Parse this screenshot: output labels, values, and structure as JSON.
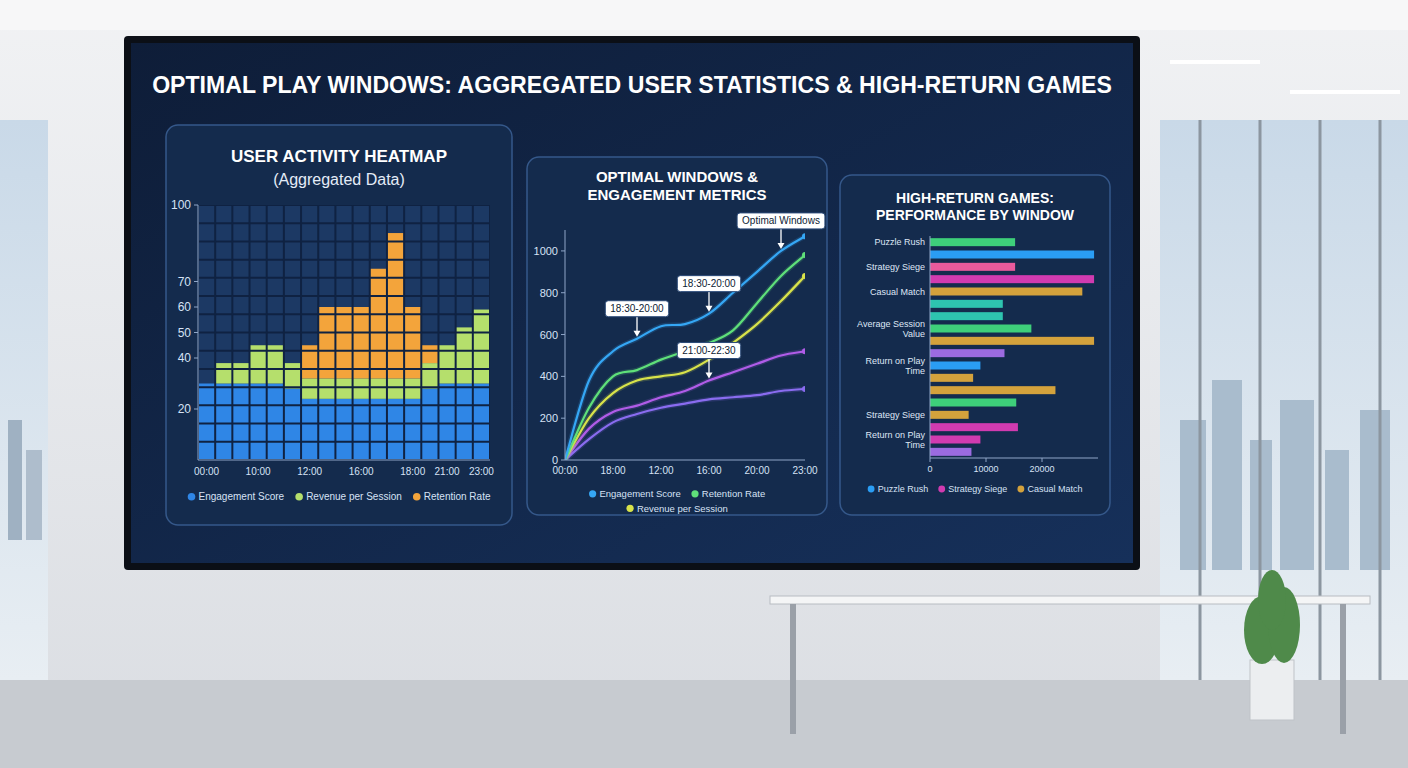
{
  "dashboard": {
    "title": "OPTIMAL PLAY WINDOWS: AGGREGATED USER STATISTICS & HIGH-RETURN GAMES"
  },
  "chart_data": [
    {
      "type": "bar",
      "stacked": true,
      "title": "USER ACTIVITY HEATMAP",
      "subtitle": "(Aggregated Data)",
      "categories": [
        "00:00",
        null,
        null,
        "10:00",
        null,
        null,
        "12:00",
        null,
        null,
        "16:00",
        null,
        null,
        "18:00",
        null,
        "21:00",
        null,
        "23:00"
      ],
      "series": [
        {
          "name": "Engagement Score",
          "color": "#2f86e6",
          "values": [
            30,
            30,
            30,
            30,
            30,
            28,
            24,
            24,
            24,
            24,
            24,
            24,
            24,
            28,
            30,
            30,
            30
          ]
        },
        {
          "name": "Revenue per Session",
          "color": "#b5df6c",
          "values": [
            0,
            8,
            8,
            15,
            15,
            10,
            8,
            8,
            8,
            8,
            8,
            8,
            8,
            10,
            15,
            22,
            29
          ]
        },
        {
          "name": "Retention Rate",
          "color": "#f3a43b",
          "values": [
            0,
            0,
            0,
            0,
            0,
            0,
            13,
            28,
            28,
            28,
            43,
            57,
            28,
            7,
            0,
            0,
            0
          ]
        }
      ],
      "ylim": [
        0,
        100
      ],
      "yticks": [
        20,
        40,
        50,
        60,
        70,
        100
      ],
      "legend": "bottom"
    },
    {
      "type": "line",
      "title": "OPTIMAL WINDOWS & ENGAGEMENT METRICS",
      "categories": [
        "00:00",
        null,
        "18:00",
        null,
        "12:00",
        null,
        "16:00",
        null,
        "20:00",
        null,
        "23:00"
      ],
      "series": [
        {
          "name": "Engagement Score",
          "color": "#35a7f5",
          "values": [
            0,
            380,
            520,
            580,
            640,
            650,
            700,
            800,
            900,
            1000,
            1070
          ]
        },
        {
          "name": "Retention Rate",
          "color": "#5fe07a",
          "values": [
            0,
            250,
            400,
            430,
            480,
            520,
            560,
            620,
            750,
            880,
            980
          ]
        },
        {
          "name": "Revenue per Session",
          "color": "#d8e34a",
          "values": [
            0,
            200,
            320,
            380,
            400,
            420,
            480,
            560,
            650,
            760,
            880
          ]
        },
        {
          "color": "#b05ce8",
          "values": [
            0,
            150,
            230,
            260,
            300,
            330,
            380,
            420,
            460,
            500,
            520
          ]
        },
        {
          "color": "#8a6cf0",
          "values": [
            0,
            100,
            180,
            220,
            250,
            270,
            290,
            300,
            310,
            330,
            340
          ]
        }
      ],
      "ylim": [
        0,
        1100
      ],
      "yticks": [
        0,
        200,
        400,
        600,
        800,
        1000
      ],
      "annotations": [
        {
          "text": "18:30-20:00",
          "x": 3,
          "y": 580
        },
        {
          "text": "18:30-20:00",
          "x": 6,
          "y": 700
        },
        {
          "text": "21:00-22:30",
          "x": 6,
          "y": 380
        },
        {
          "text": "Optimal Windows",
          "x": 9,
          "y": 1000
        }
      ],
      "legend": "bottom"
    },
    {
      "type": "bar",
      "orientation": "horizontal",
      "title": "HIGH-RETURN GAMES: PERFORMANCE BY WINDOW",
      "categories": [
        "Puzzle Rush",
        null,
        "Strategy Siege",
        null,
        "Casual Match",
        null,
        null,
        "Average Session Value",
        null,
        null,
        "Return on Play Time",
        null,
        null,
        null,
        "Strategy Siege",
        null,
        "Return on Play Time",
        null
      ],
      "series": [
        {
          "name": "Puzzle Rush",
          "color": "#2a9df4",
          "values": [
            null,
            29300,
            null,
            null,
            null,
            null,
            null,
            null,
            null,
            null,
            9000,
            null,
            null,
            null,
            null,
            null,
            null,
            null
          ]
        },
        {
          "name": "Strategy Siege",
          "color": "#d13bb0",
          "values": [
            null,
            null,
            null,
            29300,
            null,
            null,
            null,
            null,
            null,
            null,
            null,
            null,
            null,
            null,
            null,
            15700,
            9000,
            null
          ]
        },
        {
          "name": "Casual Match",
          "color": "#d4a23c",
          "values": [
            null,
            null,
            null,
            null,
            27200,
            null,
            null,
            null,
            29300,
            null,
            null,
            7700,
            22400,
            null,
            6900,
            null,
            null,
            null
          ]
        },
        {
          "color": "#3ecf7a",
          "values": [
            15200,
            null,
            null,
            null,
            null,
            null,
            null,
            18100,
            null,
            null,
            null,
            null,
            null,
            15400,
            null,
            null,
            null,
            null
          ]
        },
        {
          "color": "#e85a9c",
          "values": [
            null,
            null,
            15200,
            null,
            null,
            null,
            null,
            null,
            null,
            null,
            null,
            null,
            null,
            null,
            null,
            null,
            null,
            null
          ]
        },
        {
          "color": "#2ec4b0",
          "values": [
            null,
            null,
            null,
            null,
            null,
            13000,
            13000,
            null,
            null,
            null,
            null,
            null,
            null,
            null,
            null,
            null,
            null,
            null
          ]
        },
        {
          "color": "#9b6be0",
          "values": [
            null,
            null,
            null,
            null,
            null,
            null,
            null,
            null,
            null,
            13300,
            null,
            null,
            null,
            null,
            null,
            null,
            null,
            7400
          ]
        }
      ],
      "xlim": [
        0,
        30000
      ],
      "xticks": [
        0,
        10000,
        20000
      ],
      "legend": "bottom"
    }
  ]
}
